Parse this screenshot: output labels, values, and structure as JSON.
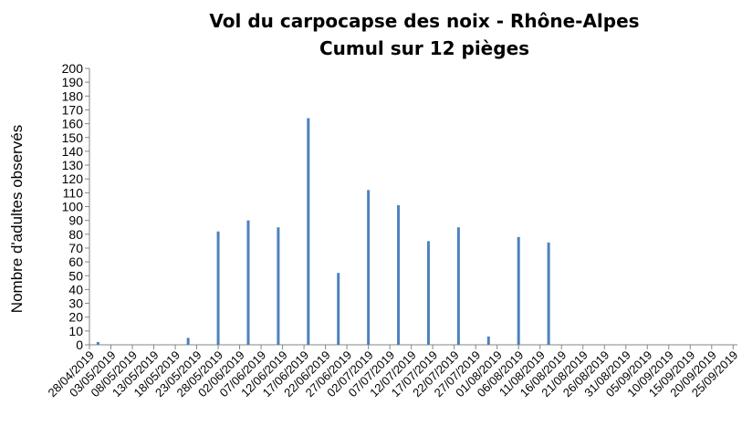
{
  "chart_data": {
    "type": "bar",
    "title": "Vol du carpocapse des noix - Rhône-Alpes",
    "subtitle": "Cumul sur 12 pièges",
    "y_label": "Nombre d'adultes observés",
    "color": "#4f81bd",
    "x": [
      "30/04/2019",
      "07/05/2019",
      "14/05/2019",
      "21/05/2019",
      "28/05/2019",
      "04/06/2019",
      "11/06/2019",
      "18/06/2019",
      "25/06/2019",
      "02/07/2019",
      "09/07/2019",
      "16/07/2019",
      "23/07/2019",
      "30/07/2019",
      "06/08/2019",
      "13/08/2019"
    ],
    "values": [
      2,
      0,
      0,
      5,
      82,
      90,
      85,
      164,
      52,
      112,
      101,
      75,
      85,
      6,
      78,
      74
    ],
    "xlim": [
      "28/04/2019",
      "26/09/2019"
    ],
    "xticks": [
      "28/04/2019",
      "03/05/2019",
      "08/05/2019",
      "13/05/2019",
      "18/05/2019",
      "23/05/2019",
      "28/05/2019",
      "02/06/2019",
      "07/06/2019",
      "12/06/2019",
      "17/06/2019",
      "22/06/2019",
      "27/06/2019",
      "02/07/2019",
      "07/07/2019",
      "12/07/2019",
      "17/07/2019",
      "22/07/2019",
      "27/07/2019",
      "01/08/2019",
      "06/08/2019",
      "11/08/2019",
      "16/08/2019",
      "21/08/2019",
      "26/08/2019",
      "31/08/2019",
      "05/09/2019",
      "10/09/2019",
      "15/09/2019",
      "20/09/2019",
      "25/09/2019"
    ],
    "ylim": [
      0,
      200
    ],
    "yticks": [
      0,
      10,
      20,
      30,
      40,
      50,
      60,
      70,
      80,
      90,
      100,
      110,
      120,
      130,
      140,
      150,
      160,
      170,
      180,
      190,
      200
    ],
    "grid": false
  }
}
